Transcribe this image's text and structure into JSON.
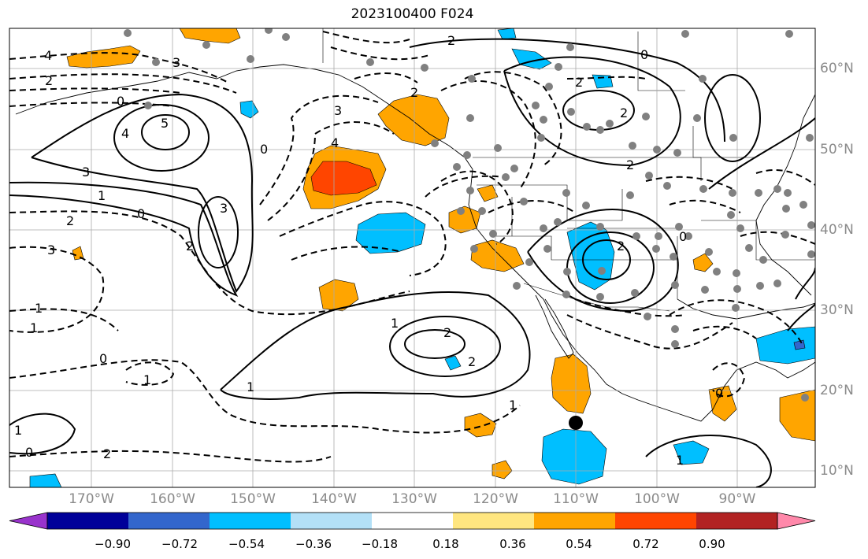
{
  "title": "2023100400 F024",
  "lon_labels": [
    "170°W",
    "160°W",
    "150°W",
    "140°W",
    "130°W",
    "120°W",
    "110°W",
    "100°W",
    "90°W"
  ],
  "lat_labels": [
    "60°N",
    "50°N",
    "40°N",
    "30°N",
    "20°N",
    "10°N"
  ],
  "colorbar": {
    "ticks": [
      "−0.90",
      "−0.72",
      "−0.54",
      "−0.36",
      "−0.18",
      "0.18",
      "0.36",
      "0.54",
      "0.72",
      "0.90"
    ],
    "colors": [
      "#9933cc",
      "#000099",
      "#3366cc",
      "#00bfff",
      "#b3e0f7",
      "#ffffff",
      "#ffe680",
      "#ffa500",
      "#ff4500",
      "#b22222",
      "#ff88aa"
    ]
  },
  "contour_labels": [
    "4",
    "3",
    "2",
    "0",
    "5",
    "4",
    "3",
    "1",
    "0",
    "2",
    "3",
    "2",
    "1",
    "1",
    "0",
    "1",
    "0",
    "2",
    "3",
    "4",
    "2",
    "0",
    "3",
    "2",
    "2",
    "2",
    "0",
    "2",
    "1",
    "2",
    "2",
    "0",
    "1",
    "1",
    "2",
    "1",
    "0",
    "1"
  ],
  "colors": {
    "orange": "#ffa500",
    "red_orange": "#ff4500",
    "cyan": "#00bfff",
    "grid": "#aaaaaa",
    "dot": "#808080"
  }
}
